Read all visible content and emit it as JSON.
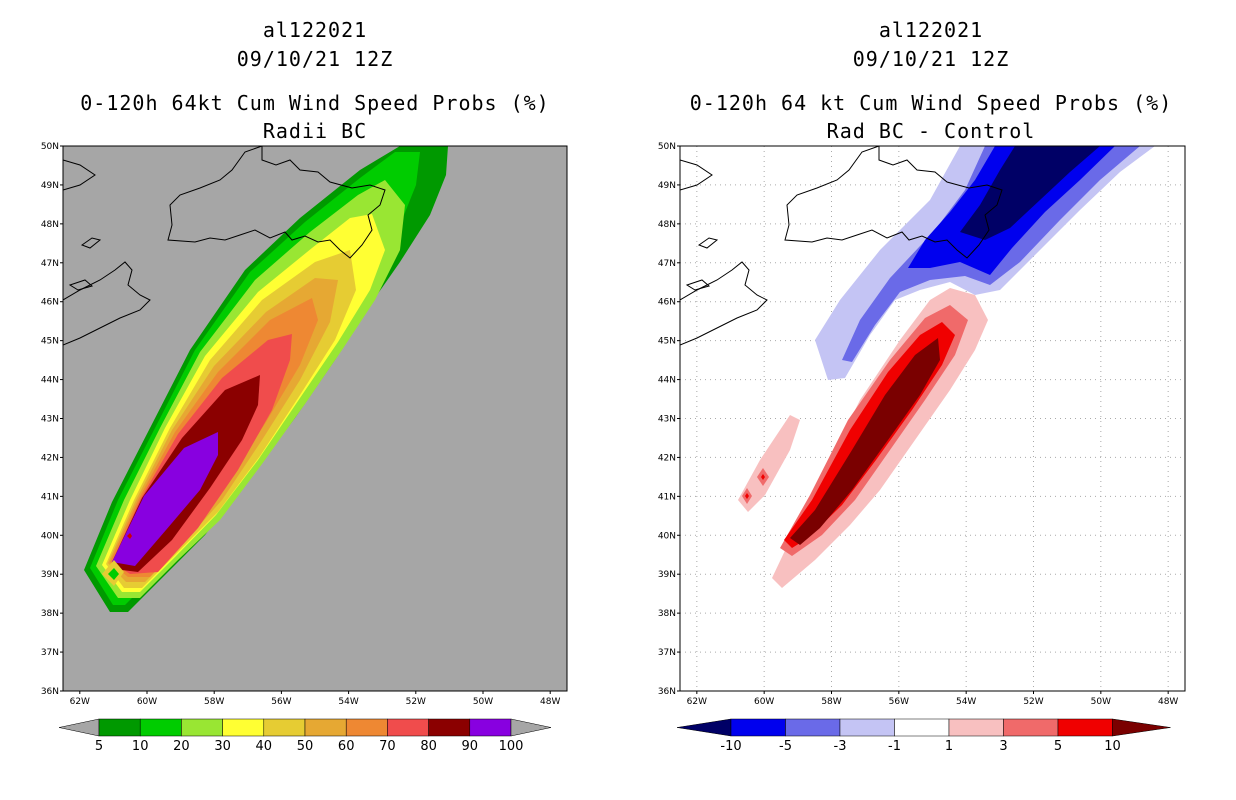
{
  "left_panel": {
    "storm_id": "al122021",
    "datetime": "09/10/21 12Z",
    "product": "0-120h 64kt Cum Wind Speed Probs (%)",
    "subtitle": "Radii BC",
    "background_color": "#a6a6a6",
    "colorbar": {
      "labels": [
        "5",
        "10",
        "20",
        "30",
        "40",
        "50",
        "60",
        "70",
        "80",
        "90",
        "100"
      ],
      "colors": [
        "#009900",
        "#00cc00",
        "#99e633",
        "#ffff33",
        "#e6cc33",
        "#e6a833",
        "#ee8833",
        "#f04c4c",
        "#8b0000",
        "#8800e0"
      ]
    }
  },
  "right_panel": {
    "storm_id": "al122021",
    "datetime": "09/10/21 12Z",
    "product": "0-120h 64 kt Cum Wind Speed Probs (%)",
    "subtitle": "Rad BC - Control",
    "background_color": "#ffffff",
    "colorbar": {
      "labels": [
        "-10",
        "-5",
        "-3",
        "-1",
        "1",
        "3",
        "5",
        "10"
      ],
      "colors": [
        "#000066",
        "#0000ee",
        "#6a6ae8",
        "#c4c4f4",
        "#ffffff",
        "#f8c0c0",
        "#f06a6a",
        "#f00000",
        "#7a0000"
      ]
    }
  },
  "axes": {
    "lat_labels": [
      "50N",
      "49N",
      "48N",
      "47N",
      "46N",
      "45N",
      "44N",
      "43N",
      "42N",
      "41N",
      "40N",
      "39N",
      "38N",
      "37N",
      "36N"
    ],
    "lon_labels": [
      "62W",
      "60W",
      "58W",
      "56W",
      "54W",
      "52W",
      "50W",
      "48W"
    ],
    "lat_range": [
      36,
      50
    ],
    "lon_range": [
      -62.5,
      -47.5
    ]
  }
}
